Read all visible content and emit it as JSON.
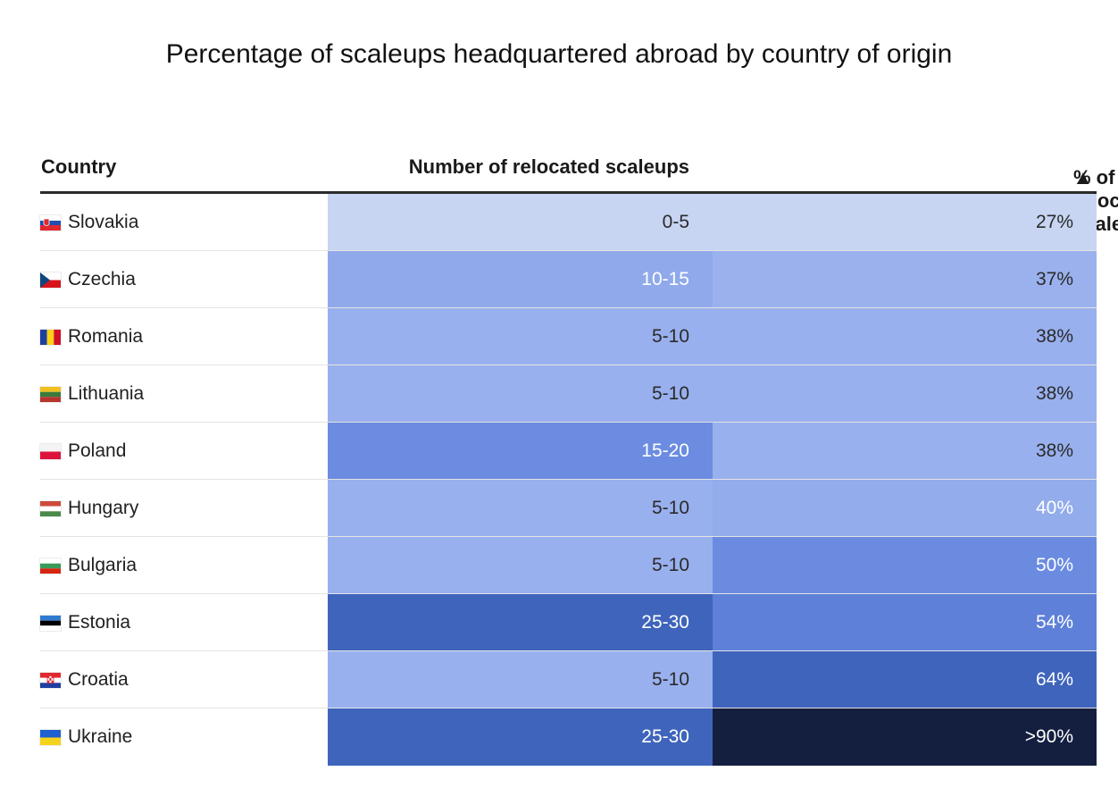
{
  "title": "Percentage of scaleups headquartered abroad by country of origin",
  "headers": {
    "country": "Country",
    "number": "Number of relocated scaleups",
    "percent": "% of relocated scaleups",
    "sort_icon": "▲"
  },
  "chart_data": {
    "type": "table",
    "title": "Percentage of scaleups headquartered abroad by country of origin",
    "columns": [
      "Country",
      "Number of relocated scaleups",
      "% of relocated scaleups"
    ],
    "sorted_by": "% of relocated scaleups (ascending)",
    "rows": [
      {
        "country": "Slovakia",
        "number": "0-5",
        "percent": "27%",
        "flag": "slovakia-flag",
        "num_color": "#c7d5f2",
        "pct_color": "#c7d5f2",
        "num_text": "#2a2a2a",
        "pct_text": "#2a2a2a"
      },
      {
        "country": "Czechia",
        "number": "10-15",
        "percent": "37%",
        "flag": "czechia-flag",
        "num_color": "#8fa9eb",
        "pct_color": "#9ab1ee",
        "num_text": "#ffffff",
        "pct_text": "#2a2a2a"
      },
      {
        "country": "Romania",
        "number": "5-10",
        "percent": "38%",
        "flag": "romania-flag",
        "num_color": "#99b0ee",
        "pct_color": "#99b0ee",
        "num_text": "#2a2a2a",
        "pct_text": "#2a2a2a"
      },
      {
        "country": "Lithuania",
        "number": "5-10",
        "percent": "38%",
        "flag": "lithuania-flag",
        "num_color": "#99b0ee",
        "pct_color": "#99b0ee",
        "num_text": "#2a2a2a",
        "pct_text": "#2a2a2a"
      },
      {
        "country": "Poland",
        "number": "15-20",
        "percent": "38%",
        "flag": "poland-flag",
        "num_color": "#6b8ce0",
        "pct_color": "#99b0ee",
        "num_text": "#ffffff",
        "pct_text": "#2a2a2a"
      },
      {
        "country": "Hungary",
        "number": "5-10",
        "percent": "40%",
        "flag": "hungary-flag",
        "num_color": "#99b0ee",
        "pct_color": "#93acec",
        "num_text": "#2a2a2a",
        "pct_text": "#ffffff"
      },
      {
        "country": "Bulgaria",
        "number": "5-10",
        "percent": "50%",
        "flag": "bulgaria-flag",
        "num_color": "#99b0ee",
        "pct_color": "#6a8be0",
        "num_text": "#2a2a2a",
        "pct_text": "#ffffff"
      },
      {
        "country": "Estonia",
        "number": "25-30",
        "percent": "54%",
        "flag": "estonia-flag",
        "num_color": "#3f64bc",
        "pct_color": "#5e80d8",
        "num_text": "#ffffff",
        "pct_text": "#ffffff"
      },
      {
        "country": "Croatia",
        "number": "5-10",
        "percent": "64%",
        "flag": "croatia-flag",
        "num_color": "#99b0ee",
        "pct_color": "#3f64bc",
        "num_text": "#2a2a2a",
        "pct_text": "#ffffff"
      },
      {
        "country": "Ukraine",
        "number": "25-30",
        "percent": ">90%",
        "flag": "ukraine-flag",
        "num_color": "#3f64bc",
        "pct_color": "#141f40",
        "num_text": "#ffffff",
        "pct_text": "#ffffff"
      }
    ]
  }
}
